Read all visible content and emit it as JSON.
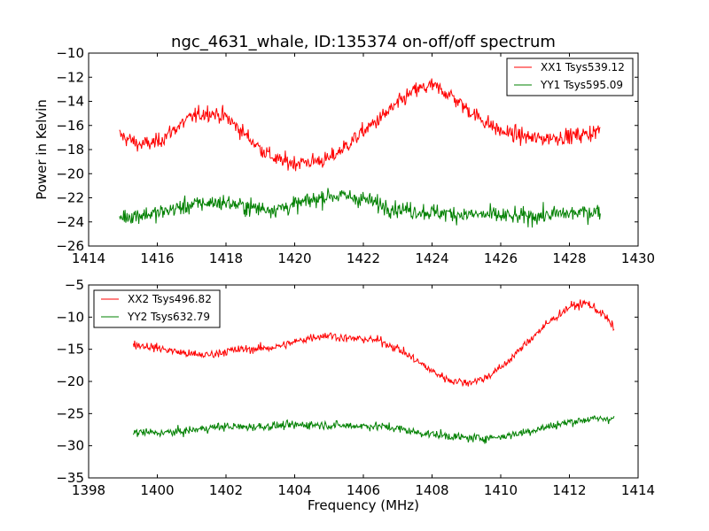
{
  "figure": {
    "title": "ngc_4631_whale, ID:135374 on-off/off spectrum"
  },
  "chart_data": [
    {
      "type": "line",
      "title": "ngc_4631_whale, ID:135374 on-off/off spectrum",
      "xlabel": "",
      "ylabel": "Power in Kelvin",
      "xlim": [
        1414,
        1430
      ],
      "ylim": [
        -26,
        -10
      ],
      "xticks": [
        "1414",
        "1416",
        "1418",
        "1420",
        "1422",
        "1424",
        "1426",
        "1428",
        "1430"
      ],
      "yticks": [
        "−10",
        "−12",
        "−14",
        "−16",
        "−18",
        "−20",
        "−22",
        "−24",
        "−26"
      ],
      "grid": false,
      "legend_position": "upper right",
      "x_range": [
        1414.9,
        1428.9
      ],
      "series": [
        {
          "name": "XX1 Tsys539.12",
          "color": "#ff0000",
          "noise": 0.85,
          "x": [
            1414.9,
            1415.5,
            1416.0,
            1416.5,
            1417.0,
            1417.5,
            1418.0,
            1418.5,
            1419.0,
            1419.5,
            1420.0,
            1420.5,
            1421.0,
            1421.5,
            1422.0,
            1422.5,
            1423.0,
            1423.5,
            1424.0,
            1424.5,
            1425.0,
            1425.5,
            1426.0,
            1426.5,
            1427.0,
            1427.5,
            1428.0,
            1428.5,
            1428.9
          ],
          "y": [
            -16.8,
            -17.6,
            -17.4,
            -16.3,
            -15.3,
            -14.9,
            -15.3,
            -16.6,
            -17.9,
            -18.9,
            -19.1,
            -19.0,
            -18.8,
            -17.7,
            -16.5,
            -15.4,
            -14.2,
            -13.1,
            -12.7,
            -13.4,
            -14.6,
            -15.6,
            -16.5,
            -16.8,
            -17.1,
            -17.0,
            -16.9,
            -16.7,
            -16.4
          ]
        },
        {
          "name": "YY1 Tsys595.09",
          "color": "#008000",
          "noise": 0.9,
          "x": [
            1414.9,
            1415.5,
            1416.0,
            1416.5,
            1417.0,
            1417.5,
            1418.0,
            1418.5,
            1419.0,
            1419.5,
            1420.0,
            1420.5,
            1421.0,
            1421.5,
            1422.0,
            1422.5,
            1423.0,
            1423.5,
            1424.0,
            1424.5,
            1425.0,
            1425.5,
            1426.0,
            1426.5,
            1427.0,
            1427.5,
            1428.0,
            1428.5,
            1428.9
          ],
          "y": [
            -23.6,
            -23.4,
            -23.3,
            -22.9,
            -22.6,
            -22.4,
            -22.4,
            -22.7,
            -22.9,
            -22.9,
            -22.6,
            -22.2,
            -21.8,
            -21.9,
            -22.1,
            -22.6,
            -22.9,
            -23.1,
            -23.2,
            -23.3,
            -23.4,
            -23.4,
            -23.5,
            -23.6,
            -23.5,
            -23.4,
            -23.3,
            -23.2,
            -23.1
          ]
        }
      ]
    },
    {
      "type": "line",
      "title": "",
      "xlabel": "Frequency (MHz)",
      "ylabel": "",
      "xlim": [
        1398,
        1414
      ],
      "ylim": [
        -35,
        -5
      ],
      "xticks": [
        "1398",
        "1400",
        "1402",
        "1404",
        "1406",
        "1408",
        "1410",
        "1412",
        "1414"
      ],
      "yticks": [
        "−5",
        "−10",
        "−15",
        "−20",
        "−25",
        "−30",
        "−35"
      ],
      "grid": false,
      "legend_position": "upper left",
      "x_range": [
        1399.3,
        1413.3
      ],
      "series": [
        {
          "name": "XX2 Tsys496.82",
          "color": "#ff0000",
          "noise": 0.85,
          "x": [
            1399.3,
            1400.0,
            1400.5,
            1401.0,
            1401.5,
            1402.0,
            1402.5,
            1403.0,
            1403.5,
            1404.0,
            1404.5,
            1405.0,
            1405.5,
            1406.0,
            1406.5,
            1407.0,
            1407.5,
            1408.0,
            1408.5,
            1409.0,
            1409.5,
            1410.0,
            1410.5,
            1411.0,
            1411.5,
            1412.0,
            1412.5,
            1413.0,
            1413.3
          ],
          "y": [
            -14.2,
            -14.8,
            -15.3,
            -15.8,
            -15.9,
            -15.3,
            -15.0,
            -14.9,
            -14.6,
            -13.9,
            -13.1,
            -12.8,
            -13.3,
            -13.4,
            -13.7,
            -14.9,
            -16.6,
            -18.4,
            -19.8,
            -20.2,
            -19.6,
            -17.9,
            -15.4,
            -12.7,
            -10.4,
            -8.4,
            -7.8,
            -9.6,
            -11.8
          ]
        },
        {
          "name": "YY2 Tsys632.79",
          "color": "#008000",
          "noise": 0.85,
          "x": [
            1399.3,
            1400.0,
            1400.5,
            1401.0,
            1401.5,
            1402.0,
            1402.5,
            1403.0,
            1403.5,
            1404.0,
            1404.5,
            1405.0,
            1405.5,
            1406.0,
            1406.5,
            1407.0,
            1407.5,
            1408.0,
            1408.5,
            1409.0,
            1409.5,
            1410.0,
            1410.5,
            1411.0,
            1411.5,
            1412.0,
            1412.5,
            1413.0,
            1413.3
          ],
          "y": [
            -27.9,
            -28.0,
            -27.9,
            -27.6,
            -27.2,
            -27.0,
            -27.1,
            -27.0,
            -26.9,
            -26.8,
            -26.7,
            -26.8,
            -26.9,
            -26.9,
            -27.0,
            -27.3,
            -27.9,
            -28.2,
            -28.5,
            -28.8,
            -28.8,
            -28.6,
            -28.1,
            -27.5,
            -26.9,
            -26.3,
            -25.9,
            -25.8,
            -25.7
          ]
        }
      ]
    }
  ]
}
